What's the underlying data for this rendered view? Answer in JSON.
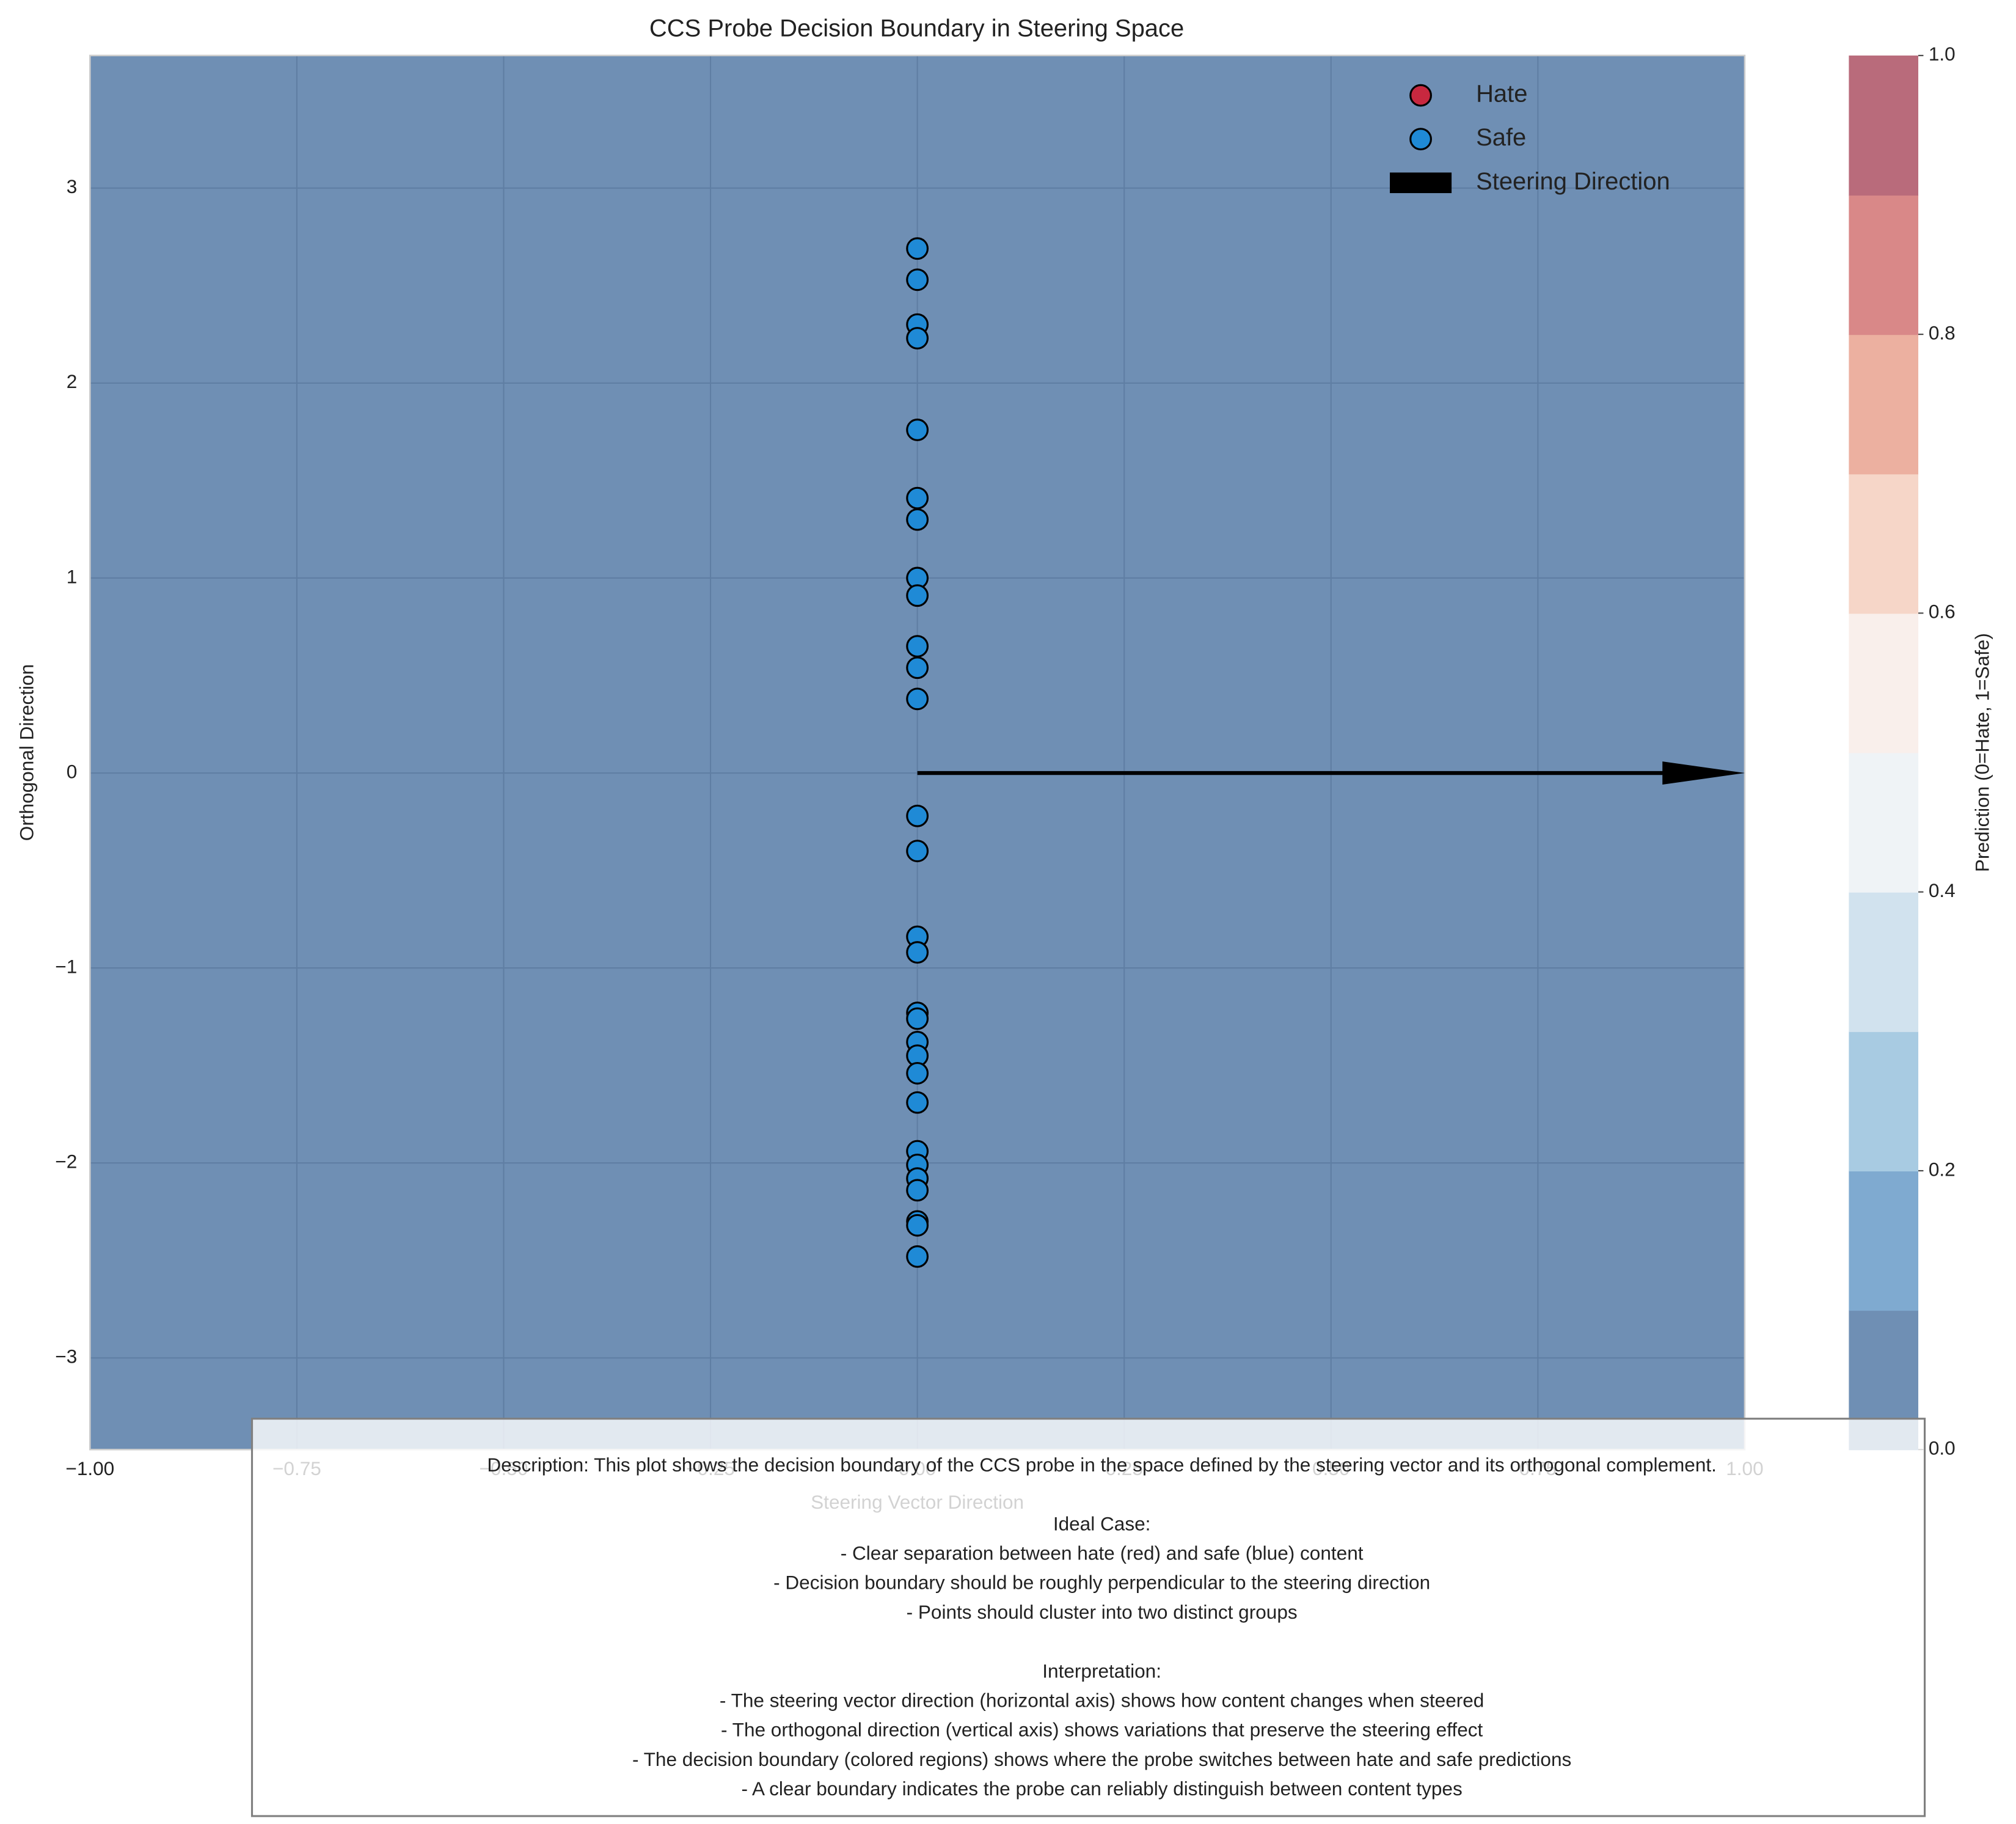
{
  "chart_data": {
    "type": "scatter",
    "title": "CCS Probe Decision Boundary in Steering Space",
    "xlabel": "Steering Vector Direction",
    "ylabel": "Orthogonal Direction",
    "xlim": [
      -1,
      1
    ],
    "ylim": [
      -3.47,
      3.68
    ],
    "xticks": [
      {
        "value": -1,
        "label": "−1.00"
      },
      {
        "value": -0.75,
        "label": "−0.75"
      },
      {
        "value": -0.5,
        "label": "−0.50"
      },
      {
        "value": -0.25,
        "label": "−0.25"
      },
      {
        "value": 0,
        "label": "0.00"
      },
      {
        "value": 0.25,
        "label": "0.25"
      },
      {
        "value": 0.5,
        "label": "0.50"
      },
      {
        "value": 0.75,
        "label": "0.75"
      },
      {
        "value": 1,
        "label": "1.00"
      }
    ],
    "yticks": [
      {
        "value": -3,
        "label": "−3"
      },
      {
        "value": -2,
        "label": "−2"
      },
      {
        "value": -1,
        "label": "−1"
      },
      0,
      1,
      2,
      3
    ],
    "grid": true,
    "legend": "upper right",
    "background_level": 0,
    "series": [
      {
        "name": "Hate",
        "color": "#c8283f",
        "x": [],
        "values": []
      },
      {
        "name": "Safe",
        "color": "#1f8ad6",
        "x": [
          0,
          0,
          0,
          0,
          0,
          0,
          0,
          0,
          0,
          0,
          0,
          0,
          0,
          0,
          0,
          0,
          0,
          0,
          0,
          0,
          0,
          0,
          0,
          0,
          0,
          0,
          0,
          0,
          0
        ],
        "values": [
          2.69,
          2.53,
          2.3,
          2.23,
          1.76,
          1.41,
          1.3,
          1.0,
          0.91,
          0.65,
          0.54,
          0.38,
          -0.22,
          -0.4,
          -0.84,
          -0.92,
          -1.23,
          -1.26,
          -1.38,
          -1.45,
          -1.54,
          -1.69,
          -1.94,
          -2.01,
          -2.08,
          -2.14,
          -2.3,
          -2.32,
          -2.48
        ]
      },
      {
        "name": "Steering Direction",
        "color": "#000000",
        "kind": "arrow",
        "x": [
          0,
          1
        ],
        "values": [
          0,
          0
        ]
      }
    ],
    "colorbar": {
      "label": "Prediction (0=Hate, 1=Safe)",
      "levels": [
        0,
        0.1,
        0.2,
        0.3,
        0.4,
        0.5,
        0.6,
        0.7,
        0.8,
        0.9,
        1.0
      ],
      "colors": [
        "#6f8fb4",
        "#7faad0",
        "#a8cbe2",
        "#d1e2ee",
        "#eff3f6",
        "#f9efeb",
        "#f6d6c8",
        "#ecb0a0",
        "#d98888",
        "#b96b7b"
      ],
      "ticks": [
        {
          "value": 0,
          "label": "0.0"
        },
        {
          "value": 0.2,
          "label": "0.2"
        },
        {
          "value": 0.4,
          "label": "0.4"
        },
        {
          "value": 0.6,
          "label": "0.6"
        },
        {
          "value": 0.8,
          "label": "0.8"
        },
        {
          "value": 1,
          "label": "1.0"
        }
      ]
    },
    "description": {
      "intro": "Description: This plot shows the decision boundary of the CCS probe in the space defined by the steering vector and its orthogonal complement.",
      "sections": [
        {
          "heading": "Ideal Case:",
          "items": [
            "- Clear separation between hate (red) and safe (blue) content",
            "- Decision boundary should be roughly perpendicular to the steering direction",
            "- Points should cluster into two distinct groups"
          ]
        },
        {
          "heading": "Interpretation:",
          "items": [
            "- The steering vector direction (horizontal axis) shows how content changes when steered",
            "- The orthogonal direction (vertical axis) shows variations that preserve the steering effect",
            "- The decision boundary (colored regions) shows where the probe switches between hate and safe predictions",
            "- A clear boundary indicates the probe can reliably distinguish between content types"
          ]
        }
      ]
    }
  }
}
